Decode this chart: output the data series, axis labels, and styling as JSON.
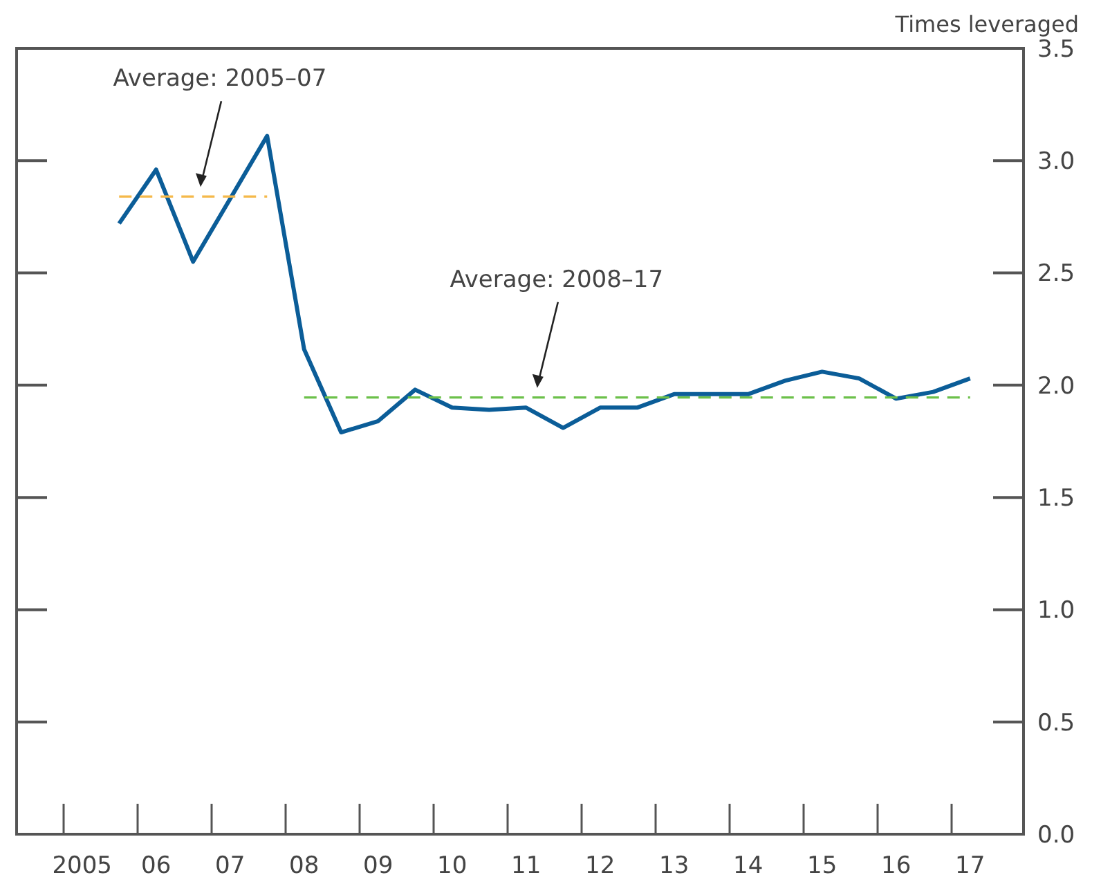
{
  "chart_data": {
    "type": "line",
    "ylabel": "Times leveraged",
    "categories": [
      "2005",
      null,
      "06",
      null,
      "07",
      null,
      "08",
      null,
      "09",
      null,
      "10",
      null,
      "11",
      null,
      "12",
      null,
      "13",
      null,
      "14",
      null,
      "15",
      null,
      "16",
      null,
      "17",
      null
    ],
    "ylim": [
      0,
      3.5
    ],
    "yticks": [
      {
        "value": 0,
        "label": "0.0"
      },
      {
        "value": 0.5,
        "label": "0.5"
      },
      {
        "value": 1,
        "label": "1.0"
      },
      {
        "value": 1.5,
        "label": "1.5"
      },
      {
        "value": 2,
        "label": "2.0"
      },
      {
        "value": 2.5,
        "label": "2.5"
      },
      {
        "value": 3,
        "label": "3.0"
      },
      {
        "value": 3.5,
        "label": "3.5"
      }
    ],
    "grid": false,
    "marker": "none",
    "series": [
      {
        "color": "#0b5d98",
        "line_style": "solid",
        "values": [
          null,
          2.72,
          2.96,
          2.55,
          2.83,
          3.11,
          2.16,
          1.79,
          1.84,
          1.98,
          1.9,
          1.89,
          1.9,
          1.81,
          1.9,
          1.9,
          1.96,
          1.96,
          1.96,
          2.02,
          2.06,
          2.03,
          1.94,
          1.97,
          2.03,
          null
        ]
      },
      {
        "color": "#f5b94a",
        "line_style": "dashed",
        "values": [
          null,
          2.84,
          2.84,
          2.84,
          2.84,
          2.84,
          null,
          null,
          null,
          null,
          null,
          null,
          null,
          null,
          null,
          null,
          null,
          null,
          null,
          null,
          null,
          null,
          null,
          null,
          null,
          null
        ]
      },
      {
        "color": "#6cc04a",
        "line_style": "dashed",
        "values": [
          null,
          null,
          null,
          null,
          null,
          null,
          1.945,
          1.945,
          1.945,
          1.945,
          1.945,
          1.945,
          1.945,
          1.945,
          1.945,
          1.945,
          1.945,
          1.945,
          1.945,
          1.945,
          1.945,
          1.945,
          1.945,
          1.945,
          1.945,
          null
        ]
      }
    ],
    "annotations": [
      "Average: 2005–07",
      "Average: 2008–17"
    ]
  }
}
